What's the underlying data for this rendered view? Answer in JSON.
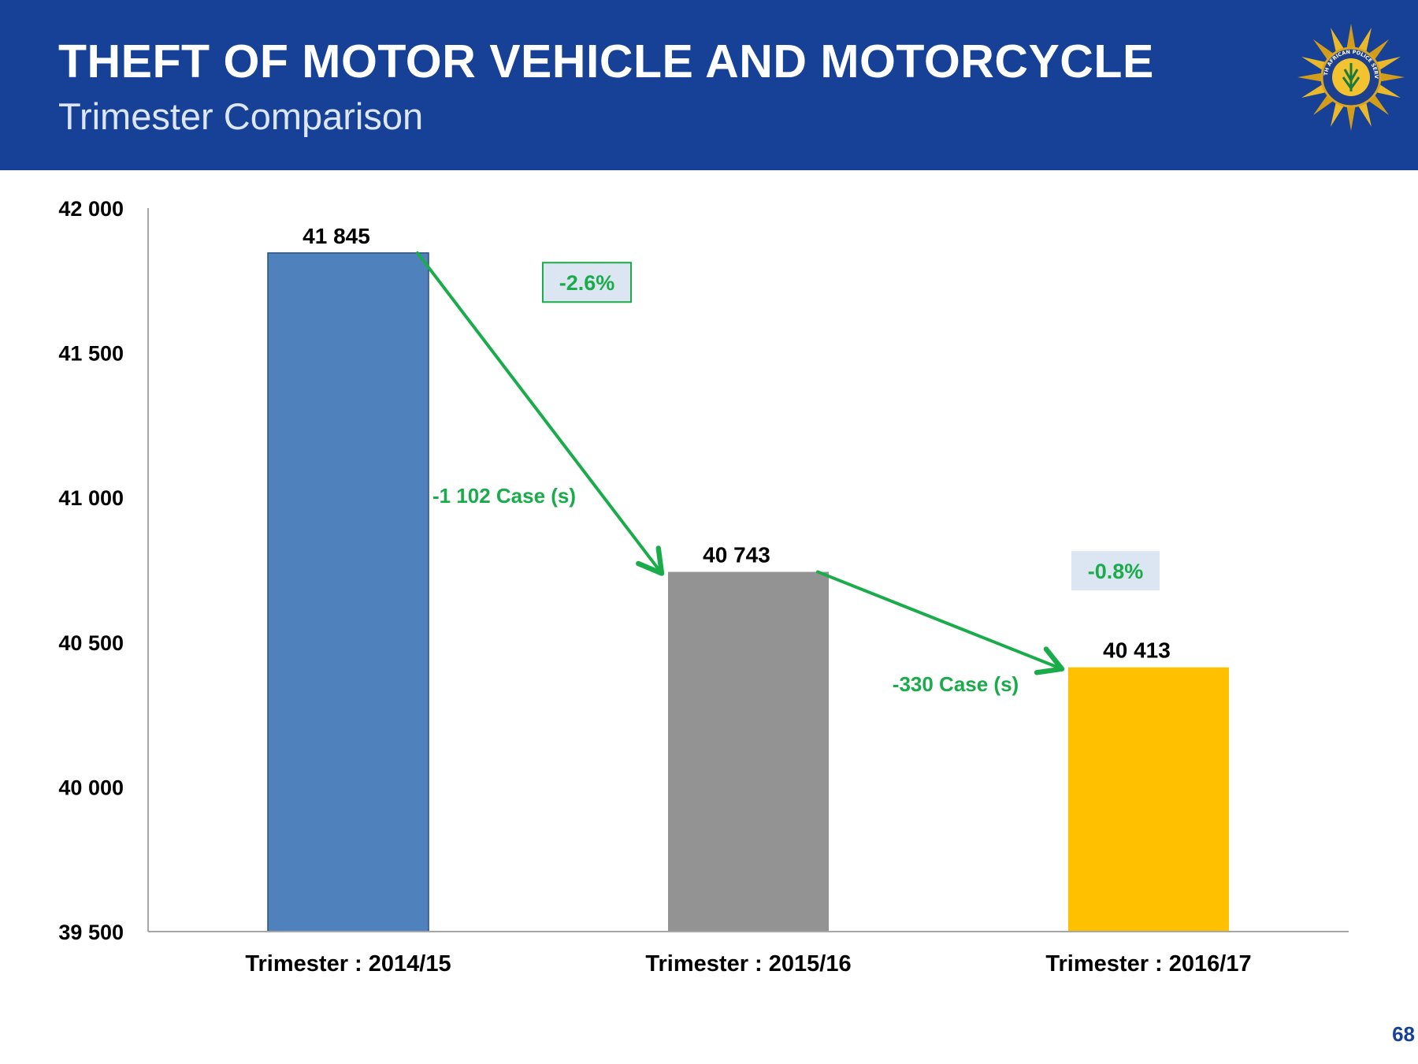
{
  "slide": {
    "title": "THEFT OF MOTOR VEHICLE AND MOTORCYCLE",
    "subtitle": "Trimester Comparison",
    "page_number": "68",
    "header_color": "#164196",
    "logo_icon": "saps-star-badge-icon",
    "logo_text": "SOUTH AFRICAN POLICE SERVICE"
  },
  "chart_data": {
    "type": "bar",
    "title": "THEFT OF MOTOR VEHICLE AND MOTORCYCLE",
    "subtitle": "Trimester Comparison",
    "categories": [
      "Trimester : 2014/15",
      "Trimester : 2015/16",
      "Trimester : 2016/17"
    ],
    "values": [
      41845,
      40743,
      40413
    ],
    "value_labels": [
      "41 845",
      "40 743",
      "40 413"
    ],
    "colors": [
      "#4f81bd",
      "#939393",
      "#ffc000"
    ],
    "ylim": [
      39500,
      42000
    ],
    "yticks": [
      39500,
      40000,
      40500,
      41000,
      41500,
      42000
    ],
    "ytick_labels": [
      "39 500",
      "40 000",
      "40 500",
      "41 000",
      "41 500",
      "42 000"
    ],
    "xlabel": "",
    "ylabel": "",
    "grid": false,
    "annotations": [
      {
        "from": 0,
        "to": 1,
        "percent": "-2.6%",
        "cases": "-1 102 Case (s)"
      },
      {
        "from": 1,
        "to": 2,
        "percent": "-0.8%",
        "cases": "-330 Case (s)"
      }
    ],
    "arrow_color": "#1aab4b"
  }
}
